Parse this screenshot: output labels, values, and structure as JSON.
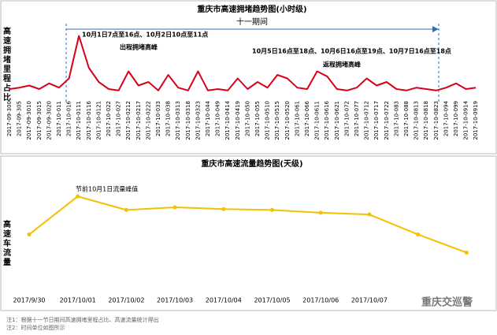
{
  "chart_data": [
    {
      "type": "line",
      "title": "重庆市高速拥堵趋势图(小时级)",
      "ylabel": "高速拥堵里程占比",
      "categories": [
        "2017-09-300",
        "2017-09-305",
        "2017-09-3010",
        "2017-09-3015",
        "2017-09-3020",
        "2017-10-011",
        "2017-10-016",
        "2017-10-0111",
        "2017-10-0116",
        "2017-10-0121",
        "2017-10-022",
        "2017-10-027",
        "2017-10-0212",
        "2017-10-0217",
        "2017-10-0222",
        "2017-10-033",
        "2017-10-038",
        "2017-10-0313",
        "2017-10-0318",
        "2017-10-0323",
        "2017-10-044",
        "2017-10-049",
        "2017-10-0414",
        "2017-10-0419",
        "2017-10-050",
        "2017-10-055",
        "2017-10-0510",
        "2017-10-0515",
        "2017-10-0520",
        "2017-10-061",
        "2017-10-066",
        "2017-10-0611",
        "2017-10-0616",
        "2017-10-0621",
        "2017-10-072",
        "2017-10-077",
        "2017-10-0712",
        "2017-10-0717",
        "2017-10-0722",
        "2017-10-083",
        "2017-10-088",
        "2017-10-0813",
        "2017-10-0818",
        "2017-10-0823",
        "2017-10-094",
        "2017-10-099",
        "2017-10-0914",
        "2017-10-0919"
      ],
      "values": [
        10,
        12,
        15,
        10,
        18,
        12,
        25,
        85,
        40,
        20,
        10,
        8,
        35,
        15,
        20,
        8,
        30,
        12,
        8,
        35,
        8,
        10,
        8,
        25,
        10,
        20,
        12,
        30,
        25,
        12,
        10,
        35,
        28,
        10,
        8,
        12,
        25,
        15,
        20,
        10,
        8,
        12,
        10,
        8,
        12,
        18,
        10,
        12
      ],
      "color": "#d9001b",
      "ylim": [
        0,
        100
      ],
      "period_label": "十一期间",
      "annotations": [
        "10月1日7点至16点、10月2日10点至11点",
        "出程拥堵高峰",
        "10月5日16点至18点、10月6日16点至19点、10月7日16点至18点",
        "返程拥堵高峰"
      ]
    },
    {
      "type": "line",
      "title": "重庆市高速流量趋势图(天级)",
      "ylabel": "高速车流量",
      "categories": [
        "2017/9/30",
        "2017/10/01",
        "2017/10/02",
        "2017/10/03",
        "2017/10/04",
        "2017/10/05",
        "2017/10/06",
        "2017/10/07",
        null,
        null
      ],
      "values": [
        37,
        79,
        64,
        67,
        65,
        64,
        61,
        59,
        37,
        17
      ],
      "color": "#f5c000",
      "ylim": [
        0,
        100
      ],
      "annotations": [
        "节前10月1日流量峰值"
      ]
    }
  ],
  "footnotes": [
    "注1：根据十一节日期间高速拥堵里程占比、高速流量统计得出",
    "注2：时间单位如图所示"
  ],
  "watermark": "重庆交巡警"
}
